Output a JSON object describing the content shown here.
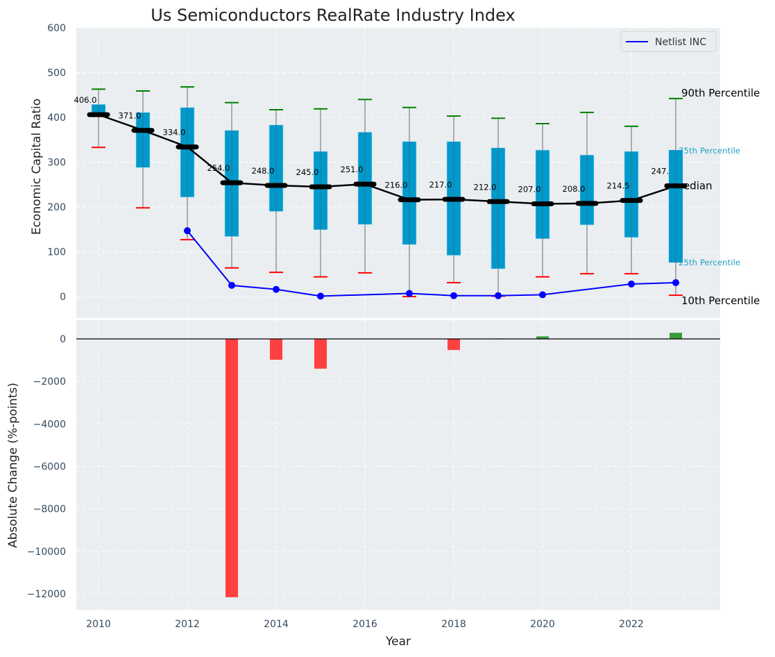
{
  "chart_data": [
    {
      "type": "box",
      "title": "Us Semiconductors RealRate Industry Index",
      "xlabel": "",
      "ylabel": "Economic Capital Ratio",
      "ylim": [
        0,
        600
      ],
      "yticks": [
        0,
        100,
        200,
        300,
        400,
        500,
        600
      ],
      "grid": true,
      "legend": {
        "placement": "top-right",
        "entries": [
          {
            "label": "Netlist INC",
            "color": "#0000ff"
          }
        ]
      },
      "x": [
        2010,
        2011,
        2012,
        2013,
        2014,
        2015,
        2016,
        2017,
        2018,
        2019,
        2020,
        2021,
        2022,
        2023
      ],
      "p90": [
        463,
        459,
        468,
        433,
        417,
        419,
        440,
        422,
        403,
        398,
        386,
        411,
        380,
        442
      ],
      "q3": [
        429,
        411,
        422,
        371,
        383,
        324,
        367,
        346,
        346,
        332,
        327,
        316,
        324,
        327
      ],
      "median": [
        406.0,
        371.0,
        334.0,
        254.0,
        248.0,
        245.0,
        251.0,
        216.0,
        217.0,
        212.0,
        207.0,
        208.0,
        214.5,
        247.0
      ],
      "median_labels": [
        "406.0",
        "371.0",
        "334.0",
        "254.0",
        "248.0",
        "245.0",
        "251.0",
        "216.0",
        "217.0",
        "212.0",
        "207.0",
        "208.0",
        "214.5",
        "247.0"
      ],
      "q1": [
        405,
        288,
        222,
        134,
        190,
        149,
        161,
        116,
        92,
        62,
        129,
        160,
        132,
        76
      ],
      "p10": [
        333,
        198,
        127,
        64,
        54,
        44,
        53,
        0,
        31,
        1,
        44,
        51,
        51,
        3
      ],
      "series": [
        {
          "name": "Netlist INC",
          "type": "line",
          "color": "#0000ff",
          "x": [
            2012,
            2013,
            2014,
            2015,
            2017,
            2018,
            2019,
            2020,
            2022,
            2023
          ],
          "values": [
            147,
            25,
            16,
            1,
            7,
            2,
            2,
            4,
            28,
            31
          ]
        }
      ],
      "annotations": {
        "p90": "90th Percentile",
        "q3": "75th Percentile",
        "median": "Median",
        "q1": "25th Percentile",
        "p10": "10th Percentile"
      },
      "colors": {
        "box": "#0099cc",
        "p90_cap": "#008000",
        "p10_cap": "#ff0000",
        "median": "#000000",
        "whisker": "#808080",
        "bg": "#eaeef0"
      }
    },
    {
      "type": "bar",
      "xlabel": "Year",
      "ylabel": "Absolute Change (%-points)",
      "ylim": [
        -12800,
        900
      ],
      "yticks": [
        0,
        -2000,
        -4000,
        -6000,
        -8000,
        -10000,
        -12000
      ],
      "ytick_labels": [
        "0",
        "−2000",
        "−4000",
        "−6000",
        "−8000",
        "−10000",
        "−12000"
      ],
      "xticks": [
        2010,
        2012,
        2014,
        2016,
        2018,
        2020,
        2022
      ],
      "xlim": [
        2009.5,
        2023.95
      ],
      "grid": true,
      "categories": [
        2013,
        2014,
        2015,
        2018,
        2019,
        2020,
        2023
      ],
      "values": [
        -12160,
        -980,
        -1400,
        -520,
        20,
        120,
        290
      ],
      "colors": {
        "negative": "#ff4040",
        "positive": "#3a9a3a"
      }
    }
  ]
}
